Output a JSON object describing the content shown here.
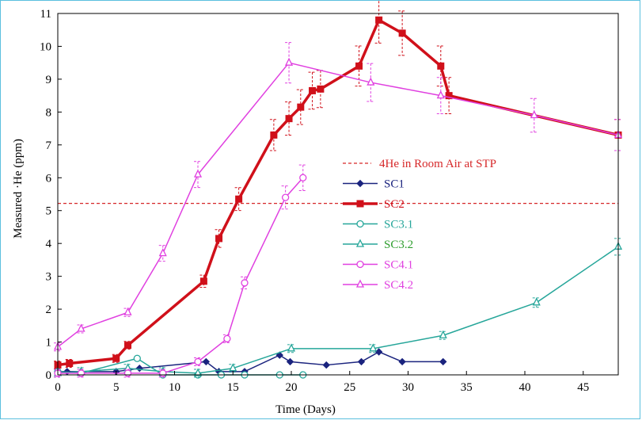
{
  "chart_data": {
    "type": "line",
    "xlabel": "Time (Days)",
    "ylabel": "Measured ·He  (ppm)",
    "xlim": [
      0,
      48
    ],
    "ylim": [
      0,
      11
    ],
    "xticks": [
      0,
      5,
      10,
      15,
      20,
      25,
      30,
      35,
      40,
      45
    ],
    "yticks": [
      0,
      1,
      2,
      3,
      4,
      5,
      6,
      7,
      8,
      9,
      10,
      11
    ],
    "grid": false,
    "legend_position": "right",
    "reference_line": {
      "label": "4He in Room Air at STP",
      "y": 5.22,
      "color": "#d62728",
      "style": "dashed"
    },
    "series": [
      {
        "name": "SC1",
        "color": "#1a237e",
        "marker": "diamond",
        "filled": true,
        "width": 1.5,
        "errorbars": false,
        "x": [
          0,
          0.8,
          5,
          7,
          12.7,
          13.8,
          16,
          19,
          19.9,
          23,
          26,
          27.5,
          29.5,
          33
        ],
        "y": [
          0.1,
          0.1,
          0.1,
          0.2,
          0.4,
          0.1,
          0.1,
          0.6,
          0.4,
          0.3,
          0.4,
          0.7,
          0.4,
          0.4
        ]
      },
      {
        "name": "SC2",
        "color": "#d0101a",
        "marker": "square",
        "filled": true,
        "width": 3.5,
        "errorbars": true,
        "x": [
          0,
          1,
          5,
          6,
          12.5,
          13.8,
          15.5,
          18.5,
          19.8,
          20.8,
          21.8,
          22.5,
          25.8,
          27.5,
          29.5,
          32.8,
          33.5,
          48
        ],
        "y": [
          0.3,
          0.35,
          0.5,
          0.9,
          2.85,
          4.15,
          5.35,
          7.3,
          7.8,
          8.15,
          8.65,
          8.7,
          9.4,
          10.8,
          10.4,
          9.4,
          8.5,
          7.3
        ]
      },
      {
        "name": "SC3.1",
        "color": "#26a69a",
        "marker": "circle",
        "filled": false,
        "width": 1.5,
        "errorbars": false,
        "x": [
          0,
          2,
          6.8,
          9,
          12,
          14,
          16,
          19,
          21
        ],
        "y": [
          0.1,
          0.05,
          0.5,
          0.0,
          0.0,
          0.0,
          0.0,
          0.0,
          0.0
        ]
      },
      {
        "name": "SC3.2",
        "color": "#26a69a",
        "marker": "triangle",
        "filled": false,
        "width": 1.5,
        "errorbars": true,
        "x": [
          0,
          2,
          6,
          9,
          12,
          15,
          20,
          27,
          33,
          41,
          48
        ],
        "y": [
          0.05,
          0.1,
          0.2,
          0.1,
          0.05,
          0.2,
          0.8,
          0.8,
          1.2,
          2.2,
          3.9
        ]
      },
      {
        "name": "SC4.1",
        "color": "#e040e0",
        "marker": "circle",
        "filled": false,
        "width": 1.5,
        "errorbars": true,
        "x": [
          0,
          2,
          6,
          9,
          12,
          14.5,
          16,
          19.5,
          21
        ],
        "y": [
          0.05,
          0.05,
          0.05,
          0.05,
          0.4,
          1.1,
          2.8,
          5.4,
          6.0
        ]
      },
      {
        "name": "SC4.2",
        "color": "#e040e0",
        "marker": "triangle",
        "filled": false,
        "width": 1.5,
        "errorbars": true,
        "x": [
          0,
          2,
          6,
          9,
          12,
          19.8,
          26.8,
          32.8,
          40.8,
          48
        ],
        "y": [
          0.85,
          1.4,
          1.9,
          3.7,
          6.1,
          9.5,
          8.9,
          8.5,
          7.9,
          7.3
        ]
      }
    ]
  }
}
